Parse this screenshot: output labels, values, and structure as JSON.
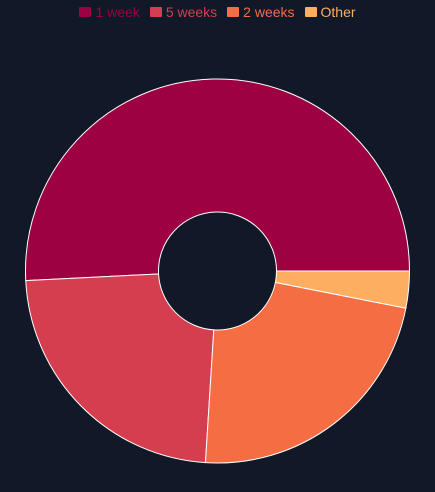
{
  "chart_data": {
    "type": "pie",
    "variant": "donut",
    "categories": [
      "1 week",
      "5 weeks",
      "2 weeks",
      "Other"
    ],
    "values": [
      50.8,
      23.2,
      22.9,
      3.1
    ],
    "colors": [
      "#9E0142",
      "#D53E4F",
      "#F46D43",
      "#FDAE61"
    ],
    "legend_position": "top",
    "background": "#111827",
    "slice_border_color": "#FFFFFF"
  }
}
